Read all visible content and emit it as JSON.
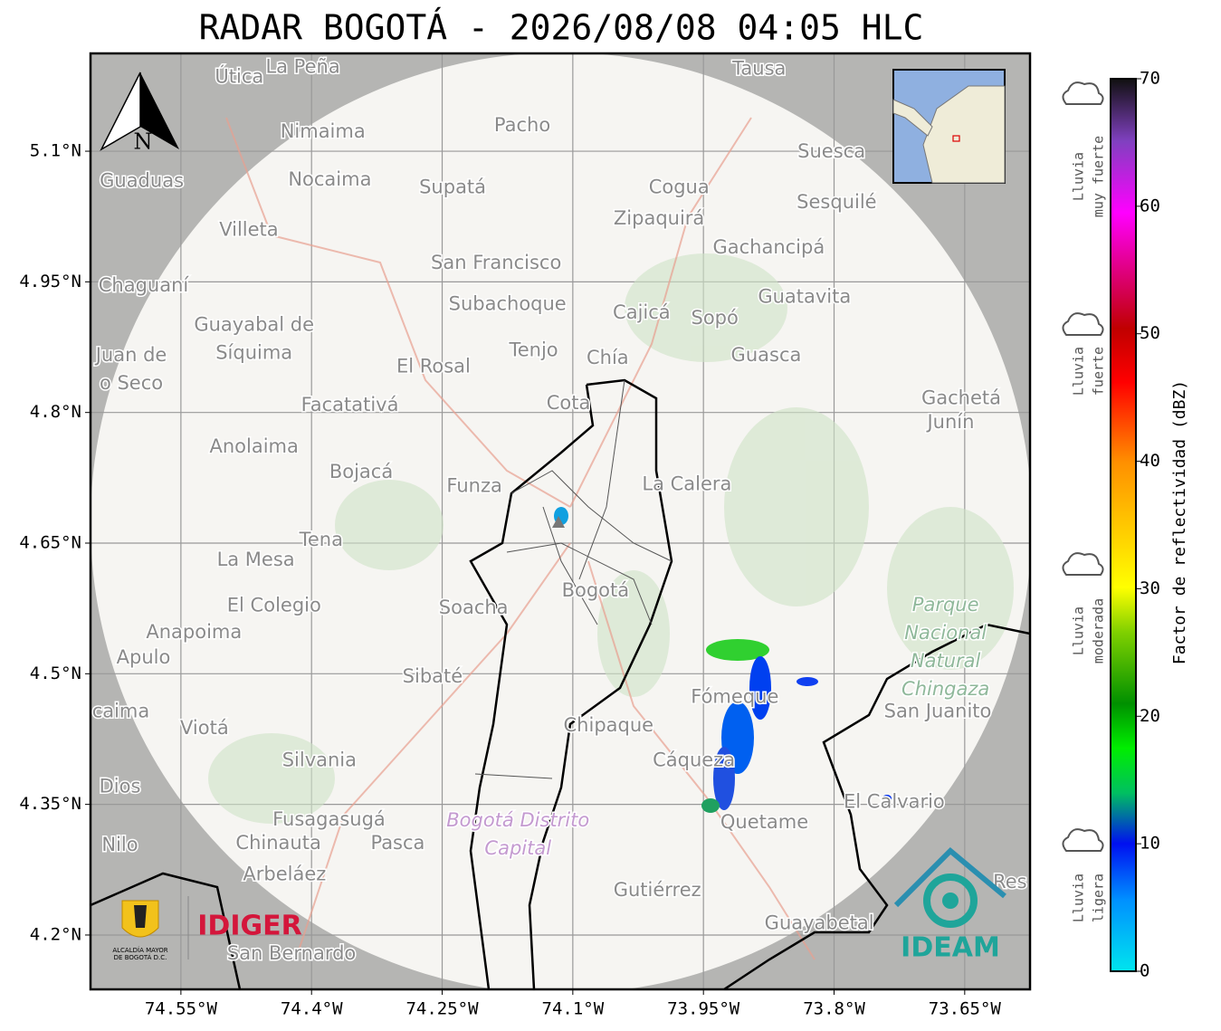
{
  "map": {
    "title": "RADAR BOGOTÁ - 2026/08/08 04:05 HLC",
    "xlim": [
      -74.6538,
      -73.575
    ],
    "ylim": [
      4.1376,
      5.2123
    ],
    "xticks": [
      {
        "value": -74.55,
        "label": "74.55°W"
      },
      {
        "value": -74.4,
        "label": "74.4°W"
      },
      {
        "value": -74.25,
        "label": "74.25°W"
      },
      {
        "value": -74.1,
        "label": "74.1°W"
      },
      {
        "value": -73.95,
        "label": "73.95°W"
      },
      {
        "value": -73.8,
        "label": "73.8°W"
      },
      {
        "value": -73.65,
        "label": "73.65°W"
      }
    ],
    "yticks": [
      {
        "value": 5.1,
        "label": "5.1°N"
      },
      {
        "value": 4.95,
        "label": "4.95°N"
      },
      {
        "value": 4.8,
        "label": "4.8°N"
      },
      {
        "value": 4.65,
        "label": "4.65°N"
      },
      {
        "value": 4.5,
        "label": "4.5°N"
      },
      {
        "value": 4.35,
        "label": "4.35°N"
      },
      {
        "value": 4.2,
        "label": "4.2°N"
      }
    ],
    "grid": true,
    "places": [
      {
        "name": "Útica",
        "lon": -74.483,
        "lat": 5.185
      },
      {
        "name": "La Peña",
        "lon": -74.41,
        "lat": 5.196
      },
      {
        "name": "Nimaima",
        "lon": -74.387,
        "lat": 5.122
      },
      {
        "name": "Pacho",
        "lon": -74.158,
        "lat": 5.129
      },
      {
        "name": "Tausa",
        "lon": -73.886,
        "lat": 5.194
      },
      {
        "name": "Guaduas",
        "lon": -74.595,
        "lat": 5.065
      },
      {
        "name": "Nocaima",
        "lon": -74.379,
        "lat": 5.067
      },
      {
        "name": "Supatá",
        "lon": -74.238,
        "lat": 5.058
      },
      {
        "name": "Cogua",
        "lon": -73.978,
        "lat": 5.058
      },
      {
        "name": "Suesca",
        "lon": -73.803,
        "lat": 5.099
      },
      {
        "name": "Sesquilé",
        "lon": -73.797,
        "lat": 5.041
      },
      {
        "name": "Zipaquirá",
        "lon": -74.001,
        "lat": 5.022
      },
      {
        "name": "Villeta",
        "lon": -74.472,
        "lat": 5.009
      },
      {
        "name": "Gachancipá",
        "lon": -73.875,
        "lat": 4.989
      },
      {
        "name": "San Francisco",
        "lon": -74.188,
        "lat": 4.971
      },
      {
        "name": "Chaguaní",
        "lon": -74.593,
        "lat": 4.945
      },
      {
        "name": "Guatavita",
        "lon": -73.834,
        "lat": 4.932
      },
      {
        "name": "Subachoque",
        "lon": -74.175,
        "lat": 4.924
      },
      {
        "name": "Cajicá",
        "lon": -74.021,
        "lat": 4.914
      },
      {
        "name": "Sopó",
        "lon": -73.937,
        "lat": 4.908
      },
      {
        "lines": [
          "Guayabal de",
          "Síquima"
        ],
        "lon": -74.466,
        "lat": 4.884
      },
      {
        "lines": [
          "Juan de",
          "o Seco"
        ],
        "lon": -74.607,
        "lat": 4.849
      },
      {
        "name": "Tenjo",
        "lon": -74.145,
        "lat": 4.871
      },
      {
        "name": "Chía",
        "lon": -74.06,
        "lat": 4.862
      },
      {
        "name": "Guasca",
        "lon": -73.878,
        "lat": 4.865
      },
      {
        "name": "El Rosal",
        "lon": -74.26,
        "lat": 4.852
      },
      {
        "name": "Facatativá",
        "lon": -74.356,
        "lat": 4.808
      },
      {
        "name": "Cota",
        "lon": -74.105,
        "lat": 4.81
      },
      {
        "name": "Gachetá",
        "lon": -73.654,
        "lat": 4.816
      },
      {
        "name": "Junín",
        "lon": -73.666,
        "lat": 4.788
      },
      {
        "name": "Anolaima",
        "lon": -74.466,
        "lat": 4.76
      },
      {
        "name": "Bojacá",
        "lon": -74.343,
        "lat": 4.731
      },
      {
        "name": "Funza",
        "lon": -74.213,
        "lat": 4.715
      },
      {
        "name": "La Calera",
        "lon": -73.969,
        "lat": 4.717
      },
      {
        "name": "Tena",
        "lon": -74.389,
        "lat": 4.653
      },
      {
        "name": "La Mesa",
        "lon": -74.464,
        "lat": 4.63
      },
      {
        "name": "Bogotá",
        "lon": -74.074,
        "lat": 4.595
      },
      {
        "name": "Soacha",
        "lon": -74.214,
        "lat": 4.575
      },
      {
        "name": "El Colegio",
        "lon": -74.443,
        "lat": 4.578
      },
      {
        "lines": [
          "Parque",
          "Nacional",
          "Natural",
          "Chingaza"
        ],
        "lon": -73.672,
        "lat": 4.53,
        "color": "#8fb89a"
      },
      {
        "name": "Anapoima",
        "lon": -74.535,
        "lat": 4.547
      },
      {
        "name": "Apulo",
        "lon": -74.593,
        "lat": 4.518
      },
      {
        "name": "Fómeque",
        "lon": -73.914,
        "lat": 4.473
      },
      {
        "name": "Sibaté",
        "lon": -74.261,
        "lat": 4.496
      },
      {
        "name": "San Juanito",
        "lon": -73.681,
        "lat": 4.456
      },
      {
        "name": "caima",
        "lon": -74.619,
        "lat": 4.456
      },
      {
        "name": "Viotá",
        "lon": -74.523,
        "lat": 4.437
      },
      {
        "name": "Chipaque",
        "lon": -74.059,
        "lat": 4.44
      },
      {
        "name": "Silvania",
        "lon": -74.391,
        "lat": 4.4
      },
      {
        "name": "Cáqueza",
        "lon": -73.961,
        "lat": 4.4
      },
      {
        "name": "Dios",
        "lon": -74.62,
        "lat": 4.37
      },
      {
        "name": "El Calvario",
        "lon": -73.731,
        "lat": 4.352
      },
      {
        "name": "Fusagasugá",
        "lon": -74.38,
        "lat": 4.332
      },
      {
        "name": "Quetame",
        "lon": -73.88,
        "lat": 4.329
      },
      {
        "lines": [
          "Bogotá Distrito",
          "Capital"
        ],
        "lon": -74.163,
        "lat": 4.315,
        "color": "#c49ad0"
      },
      {
        "name": "Nilo",
        "lon": -74.62,
        "lat": 4.303
      },
      {
        "name": "Chinauta",
        "lon": -74.438,
        "lat": 4.305
      },
      {
        "name": "Pasca",
        "lon": -74.301,
        "lat": 4.305
      },
      {
        "name": "Arbeláez",
        "lon": -74.431,
        "lat": 4.269
      },
      {
        "name": "Gutiérrez",
        "lon": -74.003,
        "lat": 4.251
      },
      {
        "name": "Guayabetal",
        "lon": -73.817,
        "lat": 4.213
      },
      {
        "name": "San Bernardo",
        "lon": -74.423,
        "lat": 4.178
      },
      {
        "name": "Res",
        "lon": -73.598,
        "lat": 4.26
      }
    ],
    "logos": {
      "alcaldia": [
        "ALCALDÍA MAYOR",
        "DE BOGOTÁ D.C."
      ],
      "idiger": "IDIGER",
      "ideam": "IDEAM"
    }
  },
  "colorbar": {
    "label": "Factor de reflectividad (dBZ)",
    "lim": [
      0,
      70
    ],
    "ticks": [
      0,
      10,
      20,
      30,
      40,
      50,
      60,
      70
    ],
    "legend": [
      {
        "lines": [
          "Lluvia",
          "muy fuerte"
        ]
      },
      {
        "lines": [
          "Lluvia",
          "fuerte"
        ]
      },
      {
        "lines": [
          "Lluvia",
          "moderada"
        ]
      },
      {
        "lines": [
          "Lluvia",
          "ligera"
        ]
      }
    ]
  }
}
